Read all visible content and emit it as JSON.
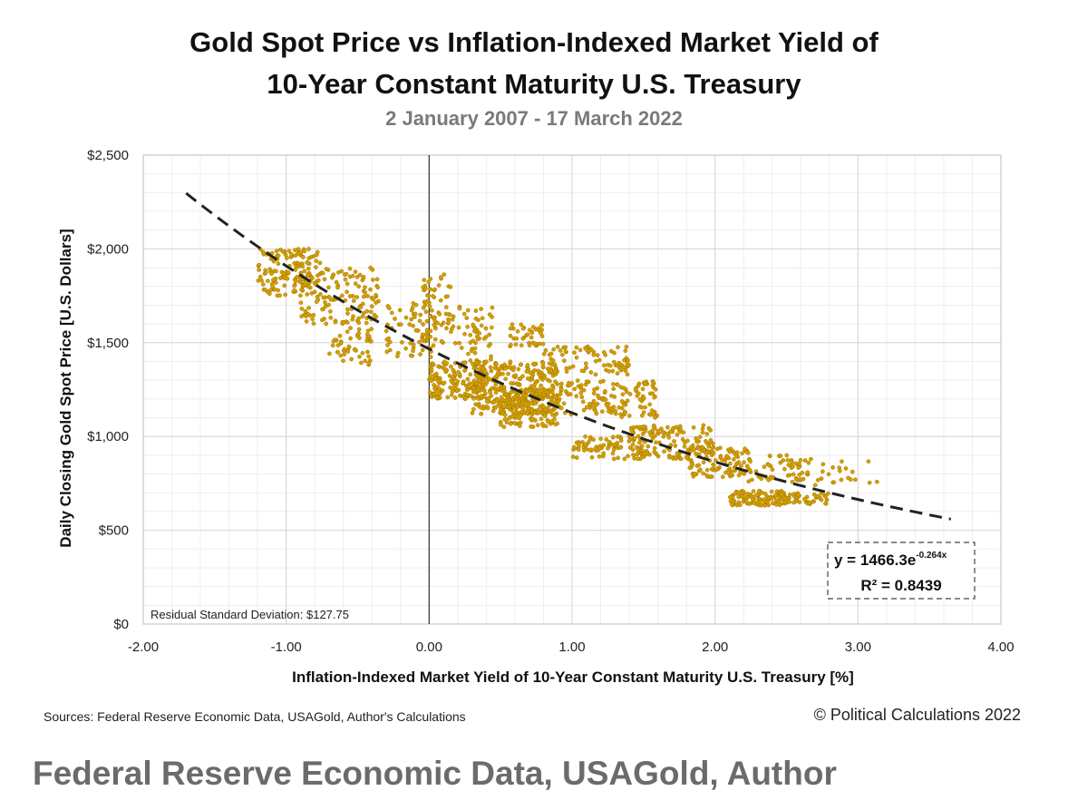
{
  "chart_data": {
    "type": "scatter",
    "title_line1": "Gold Spot Price vs Inflation-Indexed Market Yield of",
    "title_line2": "10-Year Constant Maturity U.S. Treasury",
    "subtitle": "2 January 2007 - 17 March 2022",
    "xlabel": "Inflation-Indexed Market Yield of 10-Year Constant Maturity U.S. Treasury [%]",
    "ylabel": "Daily Closing Gold Spot Price [U.S. Dollars]",
    "xlim": [
      -2.0,
      4.0
    ],
    "ylim": [
      0,
      2500
    ],
    "x_ticks": [
      "-2.00",
      "-1.00",
      "0.00",
      "1.00",
      "2.00",
      "3.00",
      "4.00"
    ],
    "y_ticks": [
      "$0",
      "$500",
      "$1,000",
      "$1,500",
      "$2,000",
      "$2,500"
    ],
    "grid": true,
    "point_color": "#d4a000",
    "point_edge_color": "#a07400",
    "trend_color": "#222222",
    "trendline": {
      "type": "exponential",
      "a": 1466.3,
      "b": -0.264,
      "x_range": [
        -1.7,
        3.65
      ],
      "equation_prefix": "y = 1466.3e",
      "equation_exponent": "-0.264x",
      "r_squared": "R² = 0.8439"
    },
    "residual_label": "Residual Standard Deviation: $127.75",
    "clusters": [
      {
        "x": [
          -1.2,
          -0.75
        ],
        "y": [
          1750,
          2000
        ],
        "n": 150
      },
      {
        "x": [
          -0.9,
          -0.35
        ],
        "y": [
          1600,
          1900
        ],
        "n": 130
      },
      {
        "x": [
          -0.7,
          -0.4
        ],
        "y": [
          1380,
          1580
        ],
        "n": 50
      },
      {
        "x": [
          -0.3,
          0.05
        ],
        "y": [
          1420,
          1720
        ],
        "n": 60
      },
      {
        "x": [
          -0.05,
          0.15
        ],
        "y": [
          1500,
          1880
        ],
        "n": 60
      },
      {
        "x": [
          0.15,
          0.45
        ],
        "y": [
          1380,
          1700
        ],
        "n": 60
      },
      {
        "x": [
          0.0,
          0.4
        ],
        "y": [
          1200,
          1400
        ],
        "n": 160
      },
      {
        "x": [
          0.3,
          0.9
        ],
        "y": [
          1120,
          1400
        ],
        "n": 300
      },
      {
        "x": [
          0.5,
          0.9
        ],
        "y": [
          1050,
          1250
        ],
        "n": 150
      },
      {
        "x": [
          0.55,
          0.8
        ],
        "y": [
          1480,
          1600
        ],
        "n": 40
      },
      {
        "x": [
          0.8,
          1.4
        ],
        "y": [
          1330,
          1480
        ],
        "n": 80
      },
      {
        "x": [
          0.9,
          1.6
        ],
        "y": [
          1100,
          1300
        ],
        "n": 140
      },
      {
        "x": [
          1.0,
          1.5
        ],
        "y": [
          880,
          1000
        ],
        "n": 80
      },
      {
        "x": [
          1.4,
          2.0
        ],
        "y": [
          880,
          1060
        ],
        "n": 140
      },
      {
        "x": [
          1.8,
          2.25
        ],
        "y": [
          780,
          940
        ],
        "n": 90
      },
      {
        "x": [
          2.1,
          2.6
        ],
        "y": [
          760,
          900
        ],
        "n": 50
      },
      {
        "x": [
          2.1,
          2.5
        ],
        "y": [
          630,
          710
        ],
        "n": 110
      },
      {
        "x": [
          2.45,
          2.8
        ],
        "y": [
          640,
          700
        ],
        "n": 50
      },
      {
        "x": [
          2.5,
          3.15
        ],
        "y": [
          740,
          880
        ],
        "n": 40
      }
    ]
  },
  "footer": {
    "sources": "Sources: Federal Reserve Economic Data, USAGold, Author's Calculations",
    "copyright": "© Political Calculations 2022",
    "caption": "Federal Reserve Economic Data, USAGold, Author"
  }
}
